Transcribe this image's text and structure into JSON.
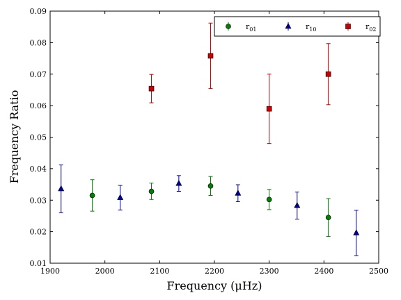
{
  "chart_data": {
    "type": "scatter",
    "title": "",
    "xlabel": "Frequency  (μHz)",
    "ylabel": "Frequency Ratio",
    "xlim": [
      1900,
      2500
    ],
    "ylim": [
      0.01,
      0.09
    ],
    "xticks": [
      "1900",
      "2000",
      "2100",
      "2200",
      "2300",
      "2400",
      "2500"
    ],
    "yticks": [
      "0.01",
      "0.02",
      "0.03",
      "0.04",
      "0.05",
      "0.06",
      "0.07",
      "0.08",
      "0.09"
    ],
    "grid": false,
    "legend_position": "top-right",
    "series": [
      {
        "name_main": "r",
        "name_sub": "01",
        "marker": "circle",
        "color": "#008000",
        "points": [
          {
            "x": 1977,
            "y": 0.0315,
            "err": 0.005
          },
          {
            "x": 2085,
            "y": 0.0328,
            "err": 0.0026
          },
          {
            "x": 2193,
            "y": 0.0345,
            "err": 0.003
          },
          {
            "x": 2300,
            "y": 0.0302,
            "err": 0.0032
          },
          {
            "x": 2408,
            "y": 0.0245,
            "err": 0.006
          }
        ]
      },
      {
        "name_main": "r",
        "name_sub": "10",
        "marker": "triangle",
        "color": "#0000a0",
        "points": [
          {
            "x": 1920,
            "y": 0.0336,
            "err": 0.0076
          },
          {
            "x": 2028,
            "y": 0.0308,
            "err": 0.0039
          },
          {
            "x": 2135,
            "y": 0.0353,
            "err": 0.0025
          },
          {
            "x": 2243,
            "y": 0.0322,
            "err": 0.0027
          },
          {
            "x": 2351,
            "y": 0.0283,
            "err": 0.0043
          },
          {
            "x": 2459,
            "y": 0.0196,
            "err": 0.0072
          }
        ]
      },
      {
        "name_main": "r",
        "name_sub": "02",
        "marker": "square",
        "color": "#cc0000",
        "points": [
          {
            "x": 2085,
            "y": 0.0654,
            "err": 0.0045
          },
          {
            "x": 2193,
            "y": 0.0758,
            "err": 0.0104
          },
          {
            "x": 2300,
            "y": 0.059,
            "err": 0.011
          },
          {
            "x": 2408,
            "y": 0.07,
            "err": 0.0097
          }
        ]
      }
    ]
  }
}
